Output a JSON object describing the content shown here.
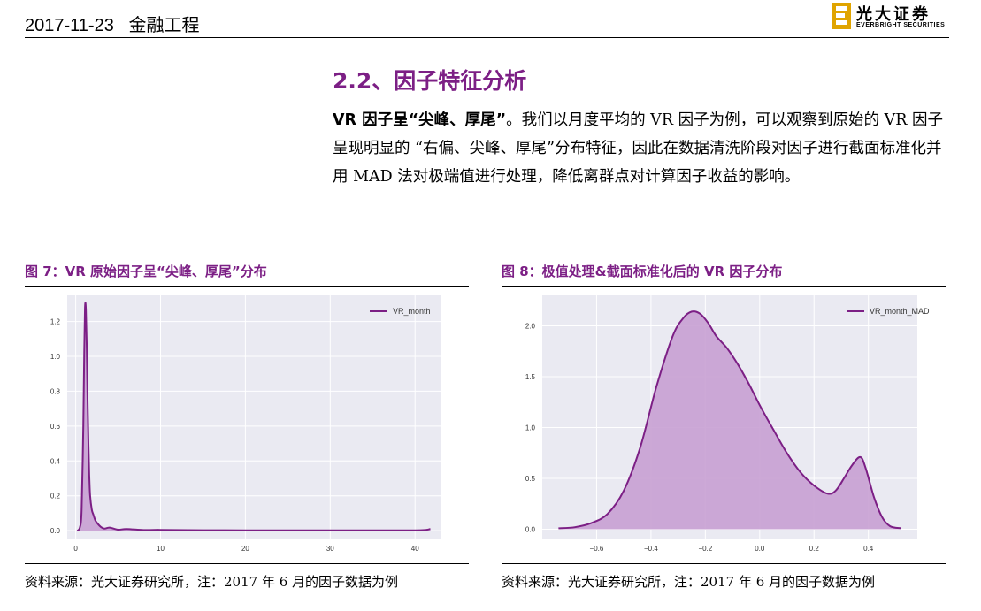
{
  "header": {
    "date": "2017-11-23",
    "category": "金融工程",
    "logo_cn": "光大证券",
    "logo_en": "EVERBRIGHT SECURITIES"
  },
  "section": {
    "title": "2.2、因子特征分析",
    "lead_bold": "VR 因子呈“尖峰、厚尾”",
    "body": "。我们以月度平均的 VR 因子为例，可以观察到原始的 VR 因子呈现明显的 “右偏、尖峰、厚尾”分布特征，因此在数据清洗阶段对因子进行截面标准化并用 MAD 法对极端值进行处理，降低离群点对计算因子收益的影响。"
  },
  "figures": [
    {
      "title": "图 7：VR 原始因子呈“尖峰、厚尾”分布",
      "source": "资料来源：光大证券研究所，注：2017 年 6 月的因子数据为例"
    },
    {
      "title": "图 8：极值处理&截面标准化后的 VR 因子分布",
      "source": "资料来源：光大证券研究所，注：2017 年 6 月的因子数据为例"
    }
  ],
  "colors": {
    "accent": "#7c1f85",
    "fill": "#c8a0d3",
    "plot_bg": "#eaeaf2"
  },
  "chart_data": [
    {
      "type": "area",
      "legend": "VR_month",
      "legend_position": "top-right",
      "grid": true,
      "xlim": [
        -1,
        43
      ],
      "ylim": [
        -0.05,
        1.35
      ],
      "xticks": [
        0,
        10,
        20,
        30,
        40
      ],
      "yticks": [
        0.0,
        0.2,
        0.4,
        0.6,
        0.8,
        1.0,
        1.2
      ],
      "ytick_labels": [
        "0.0",
        "0.2",
        "0.4",
        "0.6",
        "0.8",
        "1.0",
        "1.2"
      ],
      "x": [
        0.2,
        0.5,
        0.7,
        0.9,
        1.0,
        1.1,
        1.2,
        1.3,
        1.4,
        1.5,
        1.6,
        1.7,
        1.9,
        2.1,
        2.3,
        2.6,
        3.0,
        3.4,
        4.0,
        5.0,
        6.0,
        8.0,
        10.0,
        15.0,
        20.0,
        30.0,
        40.0,
        41.8
      ],
      "y": [
        0.0,
        0.02,
        0.12,
        0.6,
        1.0,
        1.28,
        1.27,
        1.05,
        0.75,
        0.5,
        0.32,
        0.2,
        0.12,
        0.09,
        0.06,
        0.04,
        0.02,
        0.012,
        0.018,
        0.006,
        0.01,
        0.004,
        0.005,
        0.003,
        0.002,
        0.002,
        0.002,
        0.01
      ]
    },
    {
      "type": "area",
      "legend": "VR_month_MAD",
      "legend_position": "top-right",
      "grid": true,
      "xlim": [
        -0.8,
        0.58
      ],
      "ylim": [
        -0.1,
        2.3
      ],
      "xticks": [
        -0.6,
        -0.4,
        -0.2,
        0.0,
        0.2,
        0.4
      ],
      "xtick_labels": [
        "−0.6",
        "−0.4",
        "−0.2",
        "0.0",
        "0.2",
        "0.4"
      ],
      "yticks": [
        0.0,
        0.5,
        1.0,
        1.5,
        2.0
      ],
      "ytick_labels": [
        "0.0",
        "0.5",
        "1.0",
        "1.5",
        "2.0"
      ],
      "x": [
        -0.74,
        -0.68,
        -0.62,
        -0.56,
        -0.5,
        -0.44,
        -0.38,
        -0.32,
        -0.28,
        -0.25,
        -0.22,
        -0.19,
        -0.16,
        -0.12,
        -0.08,
        -0.04,
        0.0,
        0.05,
        0.1,
        0.15,
        0.2,
        0.25,
        0.28,
        0.31,
        0.34,
        0.37,
        0.39,
        0.42,
        0.45,
        0.48,
        0.52
      ],
      "y": [
        0.01,
        0.02,
        0.06,
        0.15,
        0.38,
        0.8,
        1.4,
        1.9,
        2.08,
        2.14,
        2.12,
        2.03,
        1.9,
        1.78,
        1.62,
        1.43,
        1.22,
        0.98,
        0.75,
        0.56,
        0.43,
        0.35,
        0.38,
        0.5,
        0.63,
        0.71,
        0.6,
        0.32,
        0.12,
        0.03,
        0.01
      ]
    }
  ]
}
